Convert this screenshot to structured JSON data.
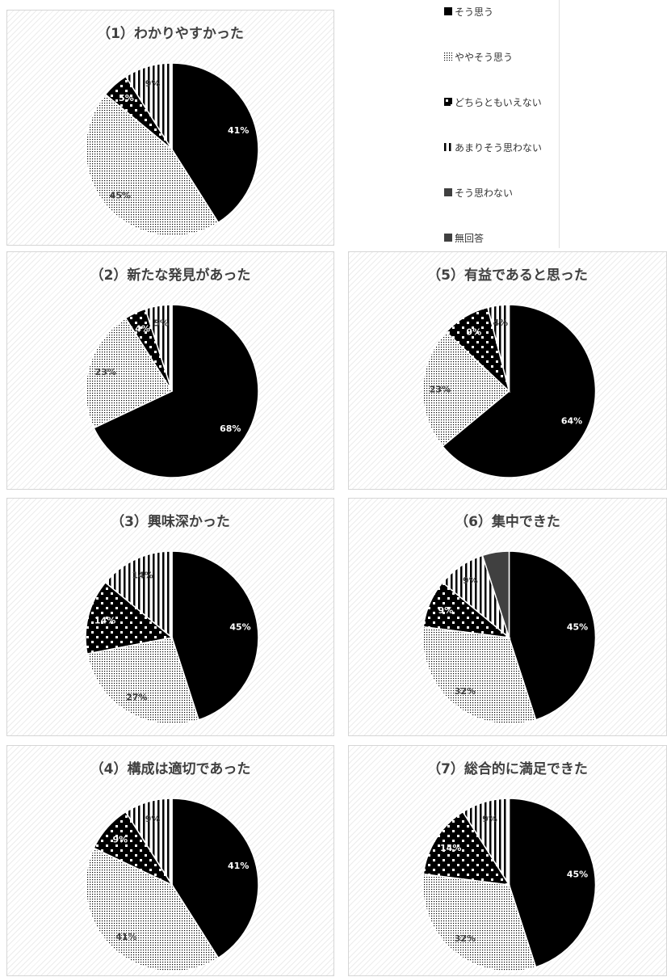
{
  "legend": {
    "items": [
      {
        "label": "そう思う",
        "pattern": "p-solid"
      },
      {
        "label": "ややそう思う",
        "pattern": "p-fine"
      },
      {
        "label": "どちらともいえない",
        "pattern": "p-sq"
      },
      {
        "label": "あまりそう思わない",
        "pattern": "p-vert"
      },
      {
        "label": "そう思わない",
        "pattern": "p-gray"
      },
      {
        "label": "無回答",
        "pattern": "p-gray"
      }
    ]
  },
  "colors": {
    "solid": "#000000",
    "gray": "#404040",
    "title": "#404040",
    "panel_border": "#d6d6d6"
  },
  "chart_data": [
    {
      "type": "pie",
      "title": "（1）わかりやすかった",
      "values": [
        41,
        45,
        5,
        9,
        0,
        0
      ],
      "labels": [
        "41%",
        "45%",
        "5%",
        "9%",
        "",
        ""
      ]
    },
    {
      "type": "pie",
      "title": "（2）新たな発見があった",
      "values": [
        68,
        23,
        4,
        5,
        0,
        0
      ],
      "labels": [
        "68%",
        "23%",
        "4%",
        "5%",
        "",
        ""
      ]
    },
    {
      "type": "pie",
      "title": "（3）興味深かった",
      "values": [
        45,
        27,
        14,
        14,
        0,
        0
      ],
      "labels": [
        "45%",
        "27%",
        "14%",
        "14%",
        "",
        ""
      ]
    },
    {
      "type": "pie",
      "title": "（4）構成は適切であった",
      "values": [
        41,
        41,
        9,
        9,
        0,
        0
      ],
      "labels": [
        "41%",
        "41%",
        "9%",
        "9%",
        "",
        ""
      ]
    },
    {
      "type": "pie",
      "title": "（5）有益であると思った",
      "values": [
        64,
        23,
        9,
        4,
        0,
        0
      ],
      "labels": [
        "64%",
        "23%",
        "9%",
        "4%",
        "",
        ""
      ]
    },
    {
      "type": "pie",
      "title": "（6）集中できた",
      "values": [
        45,
        32,
        9,
        9,
        5,
        0
      ],
      "labels": [
        "45%",
        "32%",
        "9%",
        "9%",
        "",
        ""
      ]
    },
    {
      "type": "pie",
      "title": "（7）総合的に満足できた",
      "values": [
        45,
        32,
        14,
        9,
        0,
        0
      ],
      "labels": [
        "45%",
        "32%",
        "14%",
        "9%",
        "",
        ""
      ]
    }
  ]
}
